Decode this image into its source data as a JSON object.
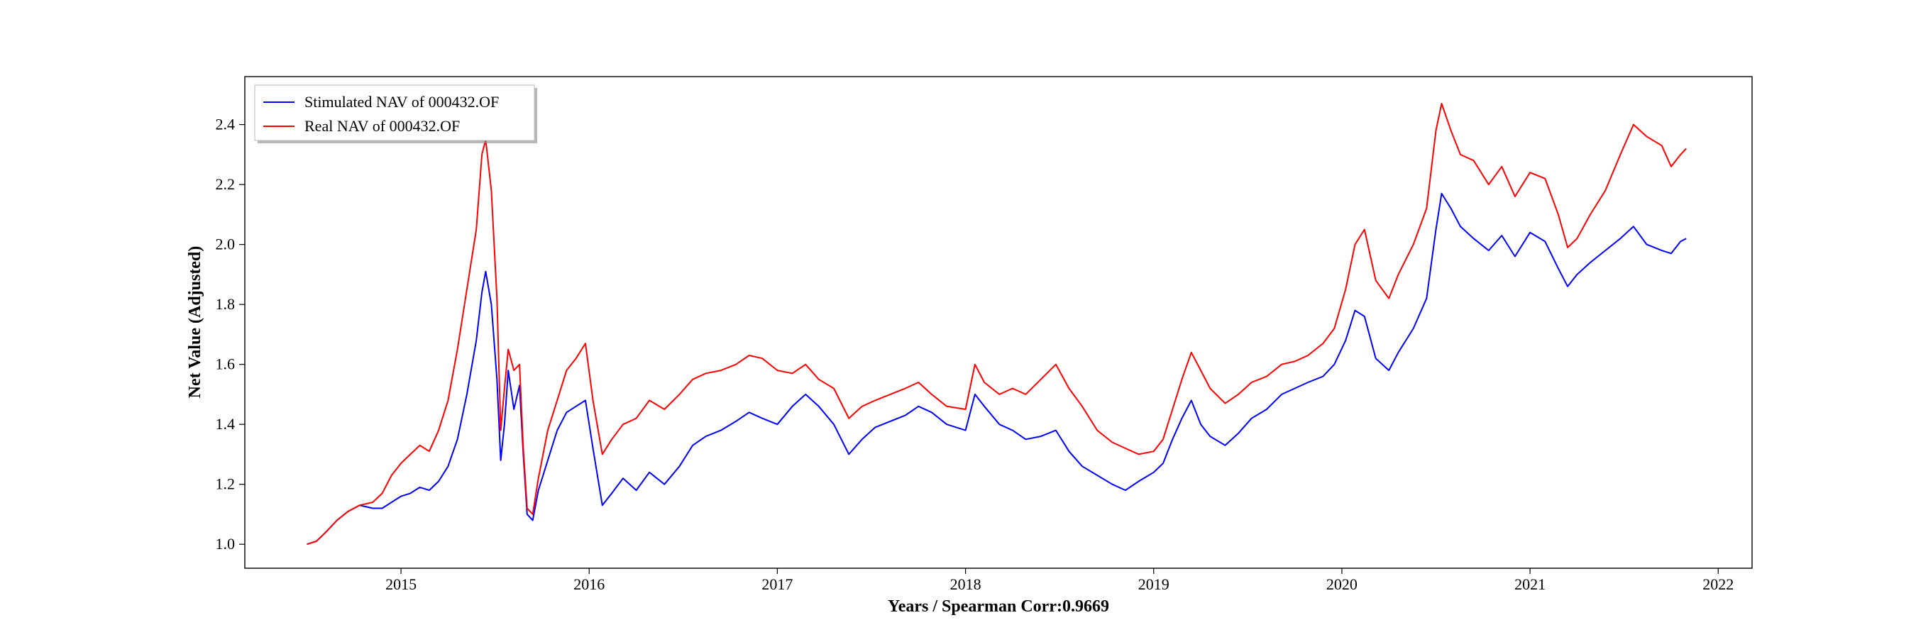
{
  "chart_data": {
    "type": "line",
    "title": "",
    "xlabel": "Years / Spearman Corr:0.9669",
    "ylabel": "Net Value (Adjusted)",
    "xlim": [
      2014.17,
      2022.18
    ],
    "ylim": [
      0.92,
      2.56
    ],
    "x_ticks": [
      2015,
      2016,
      2017,
      2018,
      2019,
      2020,
      2021,
      2022
    ],
    "x_tick_labels": [
      "2015",
      "2016",
      "2017",
      "2018",
      "2019",
      "2020",
      "2021",
      "2022"
    ],
    "y_ticks": [
      1.0,
      1.2,
      1.4,
      1.6,
      1.8,
      2.0,
      2.2,
      2.4
    ],
    "y_tick_labels": [
      "1.0",
      "1.2",
      "1.4",
      "1.6",
      "1.8",
      "2.0",
      "2.2",
      "2.4"
    ],
    "grid": false,
    "legend_position": "top-left",
    "series": [
      {
        "name": "Stimulated NAV of 000432.OF",
        "color": "#0000ff",
        "points": [
          [
            2014.5,
            1.0
          ],
          [
            2014.55,
            1.01
          ],
          [
            2014.6,
            1.04
          ],
          [
            2014.66,
            1.08
          ],
          [
            2014.72,
            1.11
          ],
          [
            2014.78,
            1.13
          ],
          [
            2014.85,
            1.12
          ],
          [
            2014.9,
            1.12
          ],
          [
            2014.95,
            1.14
          ],
          [
            2015.0,
            1.16
          ],
          [
            2015.05,
            1.17
          ],
          [
            2015.1,
            1.19
          ],
          [
            2015.15,
            1.18
          ],
          [
            2015.2,
            1.21
          ],
          [
            2015.25,
            1.26
          ],
          [
            2015.3,
            1.35
          ],
          [
            2015.35,
            1.5
          ],
          [
            2015.4,
            1.68
          ],
          [
            2015.43,
            1.84
          ],
          [
            2015.45,
            1.91
          ],
          [
            2015.48,
            1.8
          ],
          [
            2015.51,
            1.55
          ],
          [
            2015.53,
            1.28
          ],
          [
            2015.55,
            1.4
          ],
          [
            2015.57,
            1.58
          ],
          [
            2015.6,
            1.45
          ],
          [
            2015.63,
            1.53
          ],
          [
            2015.65,
            1.3
          ],
          [
            2015.67,
            1.1
          ],
          [
            2015.7,
            1.08
          ],
          [
            2015.73,
            1.18
          ],
          [
            2015.78,
            1.28
          ],
          [
            2015.83,
            1.38
          ],
          [
            2015.88,
            1.44
          ],
          [
            2015.93,
            1.46
          ],
          [
            2015.98,
            1.48
          ],
          [
            2016.02,
            1.32
          ],
          [
            2016.07,
            1.13
          ],
          [
            2016.12,
            1.17
          ],
          [
            2016.18,
            1.22
          ],
          [
            2016.25,
            1.18
          ],
          [
            2016.32,
            1.24
          ],
          [
            2016.4,
            1.2
          ],
          [
            2016.48,
            1.26
          ],
          [
            2016.55,
            1.33
          ],
          [
            2016.62,
            1.36
          ],
          [
            2016.7,
            1.38
          ],
          [
            2016.78,
            1.41
          ],
          [
            2016.85,
            1.44
          ],
          [
            2016.92,
            1.42
          ],
          [
            2017.0,
            1.4
          ],
          [
            2017.08,
            1.46
          ],
          [
            2017.15,
            1.5
          ],
          [
            2017.22,
            1.46
          ],
          [
            2017.3,
            1.4
          ],
          [
            2017.38,
            1.3
          ],
          [
            2017.45,
            1.35
          ],
          [
            2017.52,
            1.39
          ],
          [
            2017.6,
            1.41
          ],
          [
            2017.68,
            1.43
          ],
          [
            2017.75,
            1.46
          ],
          [
            2017.82,
            1.44
          ],
          [
            2017.9,
            1.4
          ],
          [
            2018.0,
            1.38
          ],
          [
            2018.05,
            1.5
          ],
          [
            2018.1,
            1.46
          ],
          [
            2018.18,
            1.4
          ],
          [
            2018.25,
            1.38
          ],
          [
            2018.32,
            1.35
          ],
          [
            2018.4,
            1.36
          ],
          [
            2018.48,
            1.38
          ],
          [
            2018.55,
            1.31
          ],
          [
            2018.62,
            1.26
          ],
          [
            2018.7,
            1.23
          ],
          [
            2018.78,
            1.2
          ],
          [
            2018.85,
            1.18
          ],
          [
            2018.92,
            1.21
          ],
          [
            2019.0,
            1.24
          ],
          [
            2019.05,
            1.27
          ],
          [
            2019.1,
            1.35
          ],
          [
            2019.15,
            1.42
          ],
          [
            2019.2,
            1.48
          ],
          [
            2019.25,
            1.4
          ],
          [
            2019.3,
            1.36
          ],
          [
            2019.38,
            1.33
          ],
          [
            2019.45,
            1.37
          ],
          [
            2019.52,
            1.42
          ],
          [
            2019.6,
            1.45
          ],
          [
            2019.68,
            1.5
          ],
          [
            2019.75,
            1.52
          ],
          [
            2019.82,
            1.54
          ],
          [
            2019.9,
            1.56
          ],
          [
            2019.96,
            1.6
          ],
          [
            2020.02,
            1.68
          ],
          [
            2020.07,
            1.78
          ],
          [
            2020.12,
            1.76
          ],
          [
            2020.18,
            1.62
          ],
          [
            2020.25,
            1.58
          ],
          [
            2020.3,
            1.64
          ],
          [
            2020.38,
            1.72
          ],
          [
            2020.45,
            1.82
          ],
          [
            2020.5,
            2.05
          ],
          [
            2020.53,
            2.17
          ],
          [
            2020.58,
            2.12
          ],
          [
            2020.63,
            2.06
          ],
          [
            2020.7,
            2.02
          ],
          [
            2020.78,
            1.98
          ],
          [
            2020.85,
            2.03
          ],
          [
            2020.92,
            1.96
          ],
          [
            2021.0,
            2.04
          ],
          [
            2021.08,
            2.01
          ],
          [
            2021.15,
            1.92
          ],
          [
            2021.2,
            1.86
          ],
          [
            2021.25,
            1.9
          ],
          [
            2021.32,
            1.94
          ],
          [
            2021.4,
            1.98
          ],
          [
            2021.48,
            2.02
          ],
          [
            2021.55,
            2.06
          ],
          [
            2021.62,
            2.0
          ],
          [
            2021.7,
            1.98
          ],
          [
            2021.75,
            1.97
          ],
          [
            2021.8,
            2.01
          ],
          [
            2021.83,
            2.02
          ]
        ]
      },
      {
        "name": "Real NAV of 000432.OF",
        "color": "#ff0000",
        "points": [
          [
            2014.5,
            1.0
          ],
          [
            2014.55,
            1.01
          ],
          [
            2014.6,
            1.04
          ],
          [
            2014.66,
            1.08
          ],
          [
            2014.72,
            1.11
          ],
          [
            2014.78,
            1.13
          ],
          [
            2014.85,
            1.14
          ],
          [
            2014.9,
            1.17
          ],
          [
            2014.95,
            1.23
          ],
          [
            2015.0,
            1.27
          ],
          [
            2015.05,
            1.3
          ],
          [
            2015.1,
            1.33
          ],
          [
            2015.15,
            1.31
          ],
          [
            2015.2,
            1.38
          ],
          [
            2015.25,
            1.48
          ],
          [
            2015.3,
            1.65
          ],
          [
            2015.35,
            1.85
          ],
          [
            2015.4,
            2.05
          ],
          [
            2015.43,
            2.3
          ],
          [
            2015.45,
            2.35
          ],
          [
            2015.48,
            2.18
          ],
          [
            2015.51,
            1.82
          ],
          [
            2015.53,
            1.38
          ],
          [
            2015.55,
            1.52
          ],
          [
            2015.57,
            1.65
          ],
          [
            2015.6,
            1.58
          ],
          [
            2015.63,
            1.6
          ],
          [
            2015.65,
            1.32
          ],
          [
            2015.67,
            1.12
          ],
          [
            2015.7,
            1.1
          ],
          [
            2015.73,
            1.22
          ],
          [
            2015.78,
            1.38
          ],
          [
            2015.83,
            1.48
          ],
          [
            2015.88,
            1.58
          ],
          [
            2015.93,
            1.62
          ],
          [
            2015.98,
            1.67
          ],
          [
            2016.02,
            1.48
          ],
          [
            2016.07,
            1.3
          ],
          [
            2016.12,
            1.35
          ],
          [
            2016.18,
            1.4
          ],
          [
            2016.25,
            1.42
          ],
          [
            2016.32,
            1.48
          ],
          [
            2016.4,
            1.45
          ],
          [
            2016.48,
            1.5
          ],
          [
            2016.55,
            1.55
          ],
          [
            2016.62,
            1.57
          ],
          [
            2016.7,
            1.58
          ],
          [
            2016.78,
            1.6
          ],
          [
            2016.85,
            1.63
          ],
          [
            2016.92,
            1.62
          ],
          [
            2017.0,
            1.58
          ],
          [
            2017.08,
            1.57
          ],
          [
            2017.15,
            1.6
          ],
          [
            2017.22,
            1.55
          ],
          [
            2017.3,
            1.52
          ],
          [
            2017.38,
            1.42
          ],
          [
            2017.45,
            1.46
          ],
          [
            2017.52,
            1.48
          ],
          [
            2017.6,
            1.5
          ],
          [
            2017.68,
            1.52
          ],
          [
            2017.75,
            1.54
          ],
          [
            2017.82,
            1.5
          ],
          [
            2017.9,
            1.46
          ],
          [
            2018.0,
            1.45
          ],
          [
            2018.05,
            1.6
          ],
          [
            2018.1,
            1.54
          ],
          [
            2018.18,
            1.5
          ],
          [
            2018.25,
            1.52
          ],
          [
            2018.32,
            1.5
          ],
          [
            2018.4,
            1.55
          ],
          [
            2018.48,
            1.6
          ],
          [
            2018.55,
            1.52
          ],
          [
            2018.62,
            1.46
          ],
          [
            2018.7,
            1.38
          ],
          [
            2018.78,
            1.34
          ],
          [
            2018.85,
            1.32
          ],
          [
            2018.92,
            1.3
          ],
          [
            2019.0,
            1.31
          ],
          [
            2019.05,
            1.35
          ],
          [
            2019.1,
            1.45
          ],
          [
            2019.15,
            1.55
          ],
          [
            2019.2,
            1.64
          ],
          [
            2019.25,
            1.58
          ],
          [
            2019.3,
            1.52
          ],
          [
            2019.38,
            1.47
          ],
          [
            2019.45,
            1.5
          ],
          [
            2019.52,
            1.54
          ],
          [
            2019.6,
            1.56
          ],
          [
            2019.68,
            1.6
          ],
          [
            2019.75,
            1.61
          ],
          [
            2019.82,
            1.63
          ],
          [
            2019.9,
            1.67
          ],
          [
            2019.96,
            1.72
          ],
          [
            2020.02,
            1.85
          ],
          [
            2020.07,
            2.0
          ],
          [
            2020.12,
            2.05
          ],
          [
            2020.18,
            1.88
          ],
          [
            2020.25,
            1.82
          ],
          [
            2020.3,
            1.9
          ],
          [
            2020.38,
            2.0
          ],
          [
            2020.45,
            2.12
          ],
          [
            2020.5,
            2.38
          ],
          [
            2020.53,
            2.47
          ],
          [
            2020.58,
            2.38
          ],
          [
            2020.63,
            2.3
          ],
          [
            2020.7,
            2.28
          ],
          [
            2020.78,
            2.2
          ],
          [
            2020.85,
            2.26
          ],
          [
            2020.92,
            2.16
          ],
          [
            2021.0,
            2.24
          ],
          [
            2021.08,
            2.22
          ],
          [
            2021.15,
            2.1
          ],
          [
            2021.2,
            1.99
          ],
          [
            2021.25,
            2.02
          ],
          [
            2021.32,
            2.1
          ],
          [
            2021.4,
            2.18
          ],
          [
            2021.48,
            2.3
          ],
          [
            2021.55,
            2.4
          ],
          [
            2021.62,
            2.36
          ],
          [
            2021.7,
            2.33
          ],
          [
            2021.75,
            2.26
          ],
          [
            2021.8,
            2.3
          ],
          [
            2021.83,
            2.32
          ]
        ]
      }
    ]
  }
}
